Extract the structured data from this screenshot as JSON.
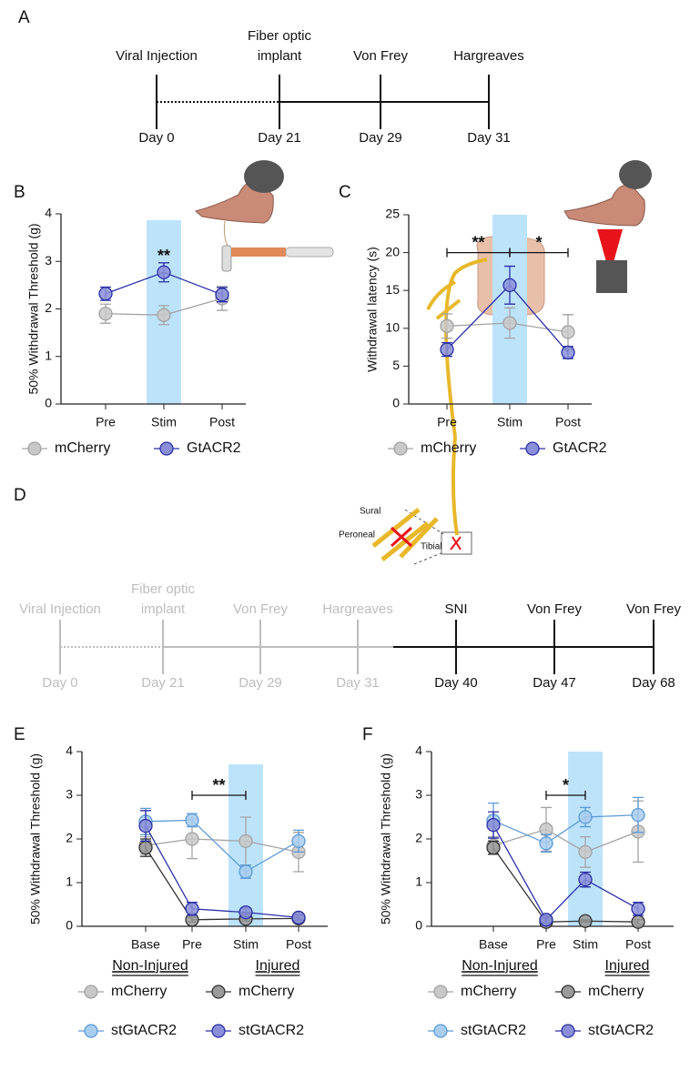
{
  "panels": [
    "A",
    "B",
    "C",
    "D",
    "E",
    "F"
  ],
  "timeline_a": {
    "events": [
      {
        "top": [
          "Viral Injection"
        ],
        "bottom": "Day 0",
        "color": "#111"
      },
      {
        "top": [
          "Fiber optic",
          "implant"
        ],
        "bottom": "Day 21",
        "color": "#111"
      },
      {
        "top": [
          "Von Frey"
        ],
        "bottom": "Day 29",
        "color": "#111"
      },
      {
        "top": [
          "Hargreaves"
        ],
        "bottom": "Day 31",
        "color": "#111"
      }
    ]
  },
  "timeline_d": {
    "events": [
      {
        "top": [
          "Viral Injection"
        ],
        "bottom": "Day 0",
        "color": "#bdbdbd"
      },
      {
        "top": [
          "Fiber optic",
          "implant"
        ],
        "bottom": "Day 21",
        "color": "#bdbdbd"
      },
      {
        "top": [
          "Von Frey"
        ],
        "bottom": "Day 29",
        "color": "#bdbdbd"
      },
      {
        "top": [
          "Hargreaves"
        ],
        "bottom": "Day 31",
        "color": "#bdbdbd"
      },
      {
        "top": [
          "SNI"
        ],
        "bottom": "Day 40",
        "color": "#111"
      },
      {
        "top": [
          "Von Frey"
        ],
        "bottom": "Day 47",
        "color": "#111"
      },
      {
        "top": [
          "Von Frey"
        ],
        "bottom": "Day 68",
        "color": "#111"
      }
    ]
  },
  "diagram": {
    "labels": [
      "Sural",
      "Peroneal",
      "Tibial"
    ]
  },
  "chart_data": [
    {
      "type": "line",
      "ylabel": "50% Withdrawal Threshold (g)",
      "categories": [
        "Pre",
        "Stim",
        "Post"
      ],
      "ylim": [
        0,
        4
      ],
      "yticks": [
        0,
        1,
        2,
        3,
        4
      ],
      "highlight": "Stim",
      "highlight_color": "#bde3fb",
      "annotations": [
        {
          "text": "**",
          "from": "Stim",
          "to": "Stim",
          "y": 3.1
        }
      ],
      "series": [
        {
          "name": "mCherry",
          "color": "#c8c8c8",
          "edge": "#a3a3a3",
          "values": [
            1.9,
            1.87,
            2.22
          ],
          "errors": [
            0.2,
            0.2,
            0.25
          ]
        },
        {
          "name": "GtACR2",
          "color": "#8a8fd8",
          "edge": "#2a2fa8",
          "values": [
            2.32,
            2.77,
            2.3
          ],
          "errors": [
            0.14,
            0.2,
            0.15
          ]
        }
      ]
    },
    {
      "type": "line",
      "ylabel": "Withdrawal latency (s)",
      "categories": [
        "Pre",
        "Stim",
        "Post"
      ],
      "ylim": [
        0,
        25
      ],
      "yticks": [
        0,
        5,
        10,
        15,
        20,
        25
      ],
      "highlight": "Stim",
      "highlight_color": "#bde3fb",
      "annotations": [
        {
          "text": "**",
          "from": "Pre",
          "to": "Stim",
          "y": 20
        },
        {
          "text": "*",
          "from": "Stim",
          "to": "Post",
          "y": 20
        }
      ],
      "series": [
        {
          "name": "mCherry",
          "color": "#c8c8c8",
          "edge": "#a3a3a3",
          "values": [
            10.3,
            10.7,
            9.5
          ],
          "errors": [
            1.6,
            2,
            2.3
          ]
        },
        {
          "name": "GtACR2",
          "color": "#8a8fd8",
          "edge": "#2a2fa8",
          "values": [
            7.2,
            15.7,
            6.8
          ],
          "errors": [
            0.9,
            2.5,
            0.8
          ]
        }
      ]
    },
    {
      "type": "line",
      "ylabel": "50% Withdrawal Threshold (g)",
      "categories": [
        "Base",
        "Pre",
        "Stim",
        "Post"
      ],
      "ylim": [
        0,
        4
      ],
      "yticks": [
        0,
        1,
        2,
        3,
        4
      ],
      "highlight": "Stim",
      "highlight_color": "#bde3fb",
      "legend_groups": [
        "Non-Injured",
        "Injured"
      ],
      "annotations": [
        {
          "text": "**",
          "from": "Pre",
          "to": "Stim",
          "y": 3
        }
      ],
      "series": [
        {
          "name": "mCherry",
          "color": "#c8c8c8",
          "edge": "#a3a3a3",
          "values": [
            1.85,
            2.0,
            1.95,
            1.7
          ],
          "errors": [
            0.2,
            0.45,
            0.55,
            0.45
          ]
        },
        {
          "name": "mCherry",
          "color": "#9a9a9a",
          "edge": "#333333",
          "values": [
            1.8,
            0.15,
            0.17,
            0.18
          ],
          "errors": [
            0.2,
            0.05,
            0.05,
            0.05
          ]
        },
        {
          "name": "stGtACR2",
          "color": "#a9cdee",
          "edge": "#5c9ad6",
          "values": [
            2.4,
            2.43,
            1.25,
            1.95
          ],
          "errors": [
            0.3,
            0.15,
            0.15,
            0.25
          ]
        },
        {
          "name": "stGtACR2",
          "color": "#8a8fd8",
          "edge": "#2a2fa8",
          "values": [
            2.3,
            0.4,
            0.32,
            0.2
          ],
          "errors": [
            0.35,
            0.15,
            0.1,
            0.06
          ]
        }
      ]
    },
    {
      "type": "line",
      "ylabel": "50% Withdrawal Threshold (g)",
      "categories": [
        "Base",
        "Pre",
        "Stim",
        "Post"
      ],
      "ylim": [
        0,
        4
      ],
      "yticks": [
        0,
        1,
        2,
        3,
        4
      ],
      "highlight": "Stim",
      "highlight_color": "#bde3fb",
      "legend_groups": [
        "Non-Injured",
        "Injured"
      ],
      "annotations": [
        {
          "text": "*",
          "from": "Pre",
          "to": "Stim",
          "y": 3
        }
      ],
      "series": [
        {
          "name": "mCherry",
          "color": "#c8c8c8",
          "edge": "#a3a3a3",
          "values": [
            1.85,
            2.22,
            1.7,
            2.17
          ],
          "errors": [
            0.2,
            0.5,
            0.35,
            0.7
          ]
        },
        {
          "name": "mCherry",
          "color": "#9a9a9a",
          "edge": "#333333",
          "values": [
            1.8,
            0.1,
            0.12,
            0.1
          ],
          "errors": [
            0.15,
            0.05,
            0.03,
            0.05
          ]
        },
        {
          "name": "stGtACR2",
          "color": "#a9cdee",
          "edge": "#5c9ad6",
          "values": [
            2.42,
            1.9,
            2.5,
            2.55
          ],
          "errors": [
            0.4,
            0.2,
            0.22,
            0.4
          ]
        },
        {
          "name": "stGtACR2",
          "color": "#8a8fd8",
          "edge": "#2a2fa8",
          "values": [
            2.32,
            0.15,
            1.07,
            0.4
          ],
          "errors": [
            0.3,
            0.08,
            0.17,
            0.15
          ]
        }
      ]
    }
  ]
}
